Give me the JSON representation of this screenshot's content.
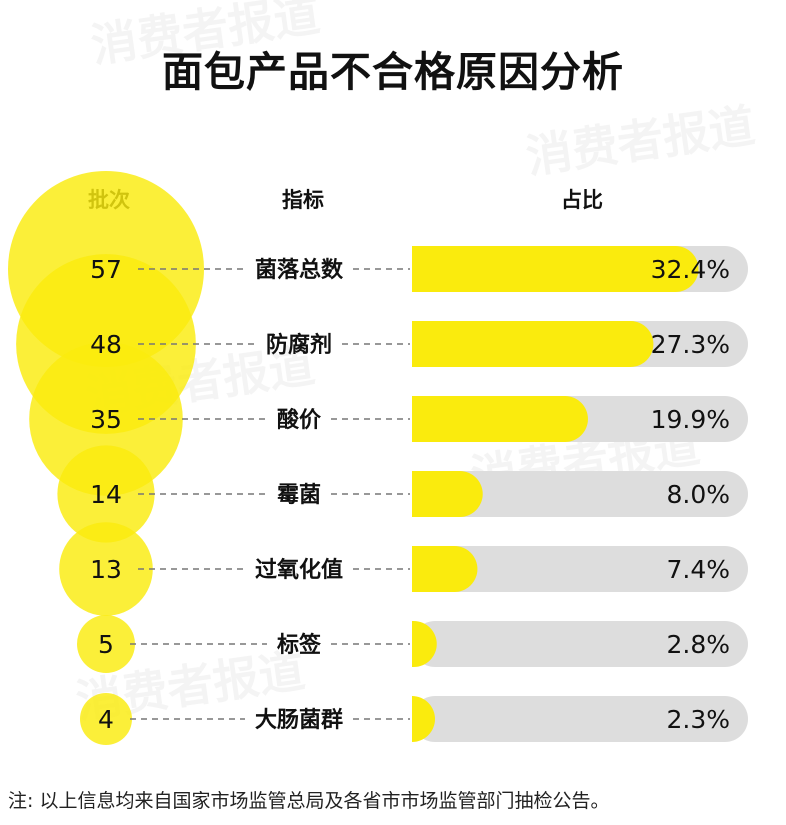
{
  "title": "面包产品不合格原因分析",
  "headers": {
    "batches": "批次",
    "indicator": "指标",
    "share": "占比"
  },
  "note": "注: 以上信息均来自国家市场监管总局及各省市市场监管部门抽检公告。",
  "watermark": "消费者报道",
  "colors": {
    "accent": "#FAEB0D",
    "track": "#DDDDDD",
    "text": "#111111",
    "dash": "#777777"
  },
  "chart_data": {
    "type": "bar",
    "categories": [
      "菌落总数",
      "防腐剂",
      "酸价",
      "霉菌",
      "过氧化值",
      "标签",
      "大肠菌群"
    ],
    "batches": [
      57,
      48,
      35,
      14,
      13,
      5,
      4
    ],
    "values": [
      32.4,
      27.3,
      19.9,
      8.0,
      7.4,
      2.8,
      2.3
    ],
    "labels": [
      "32.4%",
      "27.3%",
      "19.9%",
      "8.0%",
      "7.4%",
      "2.8%",
      "2.3%"
    ],
    "unit": "%",
    "xlim": [
      0,
      38
    ],
    "grid": false,
    "legend": "none"
  }
}
